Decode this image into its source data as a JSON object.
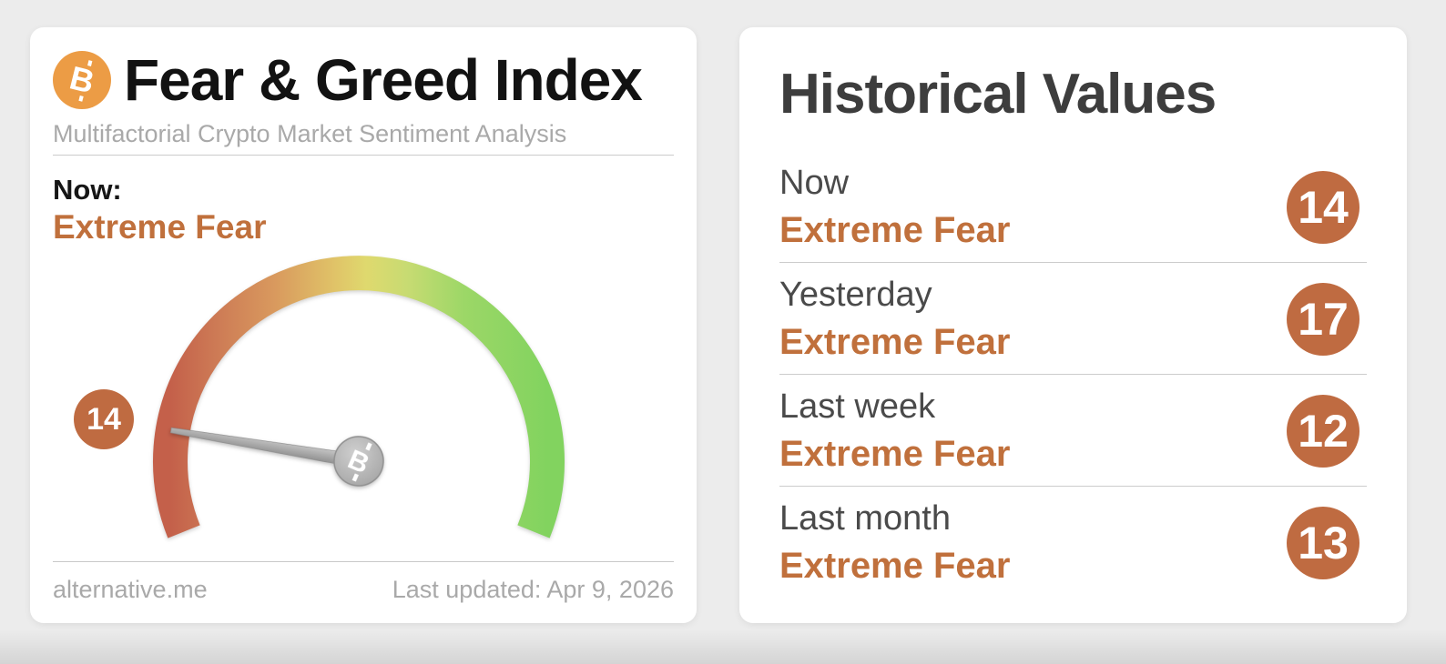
{
  "fear_greed_card": {
    "title": "Fear & Greed Index",
    "subtitle": "Multifactorial Crypto Market Sentiment Analysis",
    "now_label": "Now:",
    "now_value": "Extreme Fear",
    "source": "alternative.me",
    "last_updated": "Last updated: Apr 9, 2026"
  },
  "gauge": {
    "type": "gauge",
    "value": 14,
    "min": 0,
    "max": 100,
    "sweep_degrees": 224,
    "classification": "Extreme Fear"
  },
  "historical_card": {
    "title": "Historical Values",
    "rows": [
      {
        "label": "Now",
        "classification": "Extreme Fear",
        "value": 14
      },
      {
        "label": "Yesterday",
        "classification": "Extreme Fear",
        "value": 17
      },
      {
        "label": "Last week",
        "classification": "Extreme Fear",
        "value": 12
      },
      {
        "label": "Last month",
        "classification": "Extreme Fear",
        "value": 13
      }
    ]
  },
  "colors": {
    "accent_orange_text": "#c0703c",
    "badge_orange": "#bf6b41",
    "bitcoin_orange": "#ec9c45",
    "gauge_red": "#c4604a",
    "gauge_orange": "#d99a5e",
    "gauge_yellow": "#dfd96e",
    "gauge_green": "#82d35f",
    "needle_gray": "#a8a8a8",
    "page_background": "#ececec"
  }
}
